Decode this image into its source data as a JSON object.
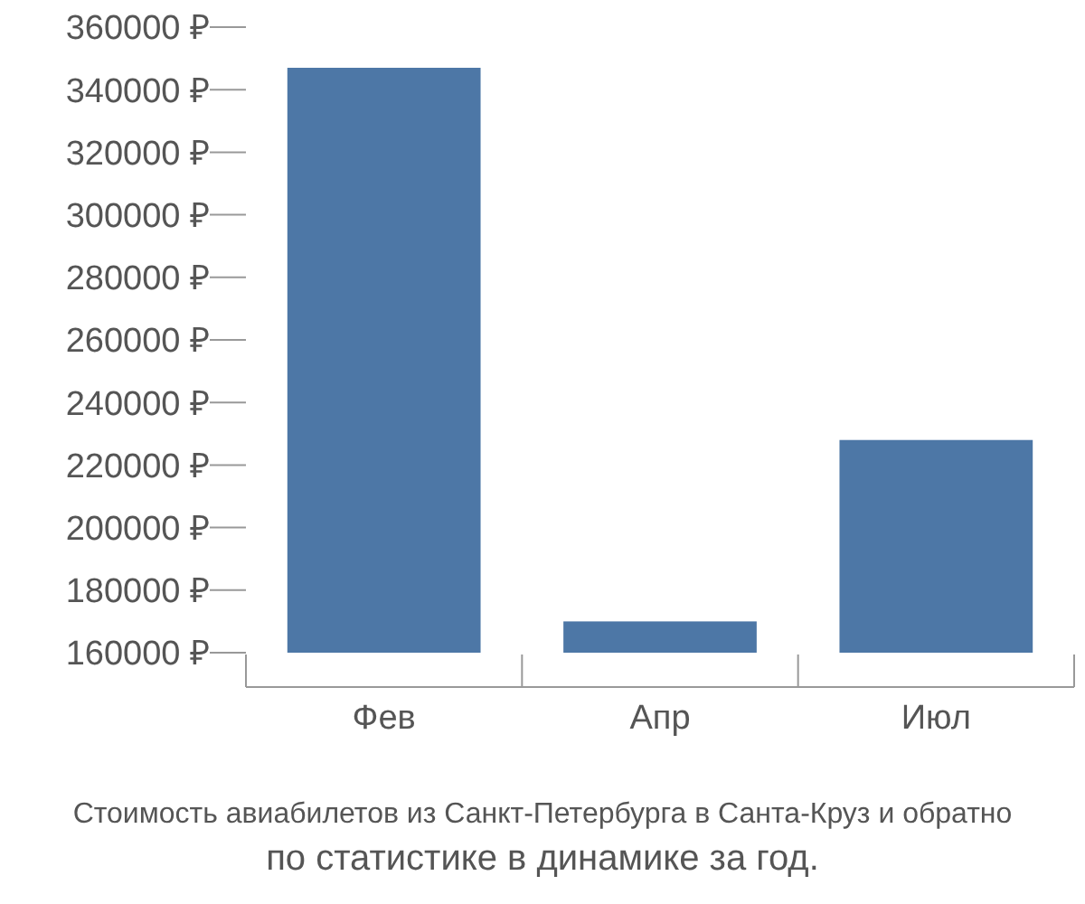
{
  "chart_data": {
    "type": "bar",
    "categories": [
      "Фев",
      "Апр",
      "Июл"
    ],
    "values": [
      347000,
      170000,
      228000
    ],
    "color": "#4d77a6",
    "ylim": [
      160000,
      360000
    ],
    "yticks": [
      {
        "value": 160000,
        "label": "160000 ₽"
      },
      {
        "value": 180000,
        "label": "180000 ₽"
      },
      {
        "value": 200000,
        "label": "200000 ₽"
      },
      {
        "value": 220000,
        "label": "220000 ₽"
      },
      {
        "value": 240000,
        "label": "240000 ₽"
      },
      {
        "value": 260000,
        "label": "260000 ₽"
      },
      {
        "value": 280000,
        "label": "280000 ₽"
      },
      {
        "value": 300000,
        "label": "300000 ₽"
      },
      {
        "value": 320000,
        "label": "320000 ₽"
      },
      {
        "value": 340000,
        "label": "340000 ₽"
      },
      {
        "value": 360000,
        "label": "360000 ₽"
      }
    ],
    "annotations": [
      "Стоимость авиабилетов из Санкт-Петербурга в Санта-Круз и обратно",
      "по статистике в динамике за год."
    ]
  }
}
